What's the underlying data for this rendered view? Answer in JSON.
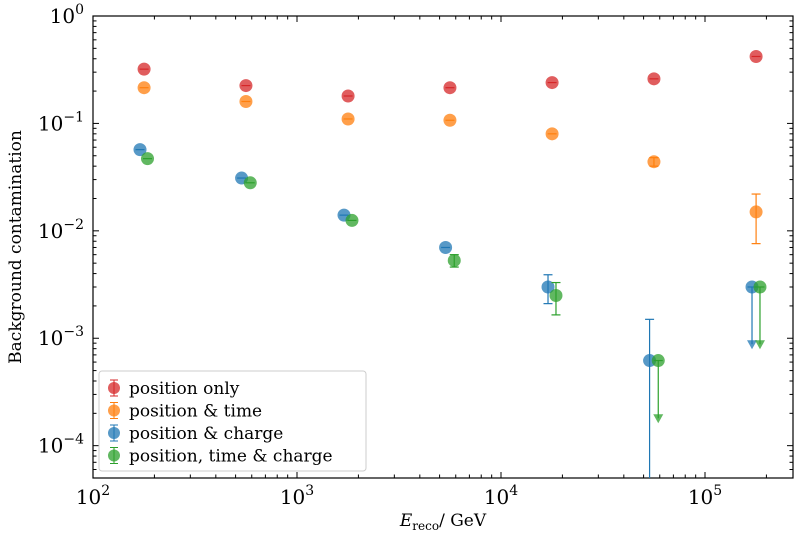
{
  "chart_data": {
    "type": "scatter",
    "title": "",
    "xlabel_main": "E",
    "xlabel_sub": "reco",
    "xlabel_unit": "/ GeV",
    "ylabel": "Background contamination",
    "xscale": "log",
    "yscale": "log",
    "xlim": [
      100,
      270000
    ],
    "ylim": [
      5e-05,
      1.0
    ],
    "x_ticks": [
      {
        "base": "10",
        "exp": "2",
        "value": 100
      },
      {
        "base": "10",
        "exp": "3",
        "value": 1000
      },
      {
        "base": "10",
        "exp": "4",
        "value": 10000
      },
      {
        "base": "10",
        "exp": "5",
        "value": 100000
      }
    ],
    "y_ticks": [
      {
        "base": "10",
        "exp": "0",
        "value": 1
      },
      {
        "base": "10",
        "exp": "−1",
        "value": 0.1
      },
      {
        "base": "10",
        "exp": "−2",
        "value": 0.01
      },
      {
        "base": "10",
        "exp": "−3",
        "value": 0.001
      },
      {
        "base": "10",
        "exp": "−4",
        "value": 0.0001
      }
    ],
    "legend_location": "bottom-left",
    "series": [
      {
        "name": "position only",
        "color": "#d62728",
        "points": [
          {
            "x": 178,
            "y": 0.32
          },
          {
            "x": 562,
            "y": 0.225
          },
          {
            "x": 1780,
            "y": 0.18
          },
          {
            "x": 5620,
            "y": 0.215
          },
          {
            "x": 17800,
            "y": 0.24
          },
          {
            "x": 56200,
            "y": 0.26
          },
          {
            "x": 178000,
            "y": 0.42
          }
        ]
      },
      {
        "name": "position & time",
        "color": "#ff7f0e",
        "points": [
          {
            "x": 178,
            "y": 0.215
          },
          {
            "x": 562,
            "y": 0.16
          },
          {
            "x": 1780,
            "y": 0.11
          },
          {
            "x": 5620,
            "y": 0.107
          },
          {
            "x": 17800,
            "y": 0.08
          },
          {
            "x": 56200,
            "y": 0.044,
            "err_low": 0.04,
            "err_high": 0.048
          },
          {
            "x": 178000,
            "y": 0.015,
            "err_low": 0.0076,
            "err_high": 0.022
          }
        ]
      },
      {
        "name": "position & charge",
        "color": "#1f77b4",
        "points": [
          {
            "x": 170,
            "y": 0.057
          },
          {
            "x": 535,
            "y": 0.031
          },
          {
            "x": 1700,
            "y": 0.014
          },
          {
            "x": 5350,
            "y": 0.007
          },
          {
            "x": 17000,
            "y": 0.003,
            "err_low": 0.0021,
            "err_high": 0.0039
          },
          {
            "x": 53500,
            "y": 0.00062,
            "err_low": 5e-05,
            "err_high": 0.0015
          },
          {
            "x": 170000,
            "y": 0.003,
            "upper_limit_to": 0.00088
          }
        ]
      },
      {
        "name": "position, time & charge",
        "color": "#2ca02c",
        "points": [
          {
            "x": 185,
            "y": 0.047
          },
          {
            "x": 590,
            "y": 0.028
          },
          {
            "x": 1860,
            "y": 0.0125
          },
          {
            "x": 5900,
            "y": 0.0053,
            "err_low": 0.0046,
            "err_high": 0.006
          },
          {
            "x": 18600,
            "y": 0.0025,
            "err_low": 0.00165,
            "err_high": 0.0033
          },
          {
            "x": 59000,
            "y": 0.00062,
            "upper_limit_to": 0.00018
          },
          {
            "x": 186000,
            "y": 0.003,
            "upper_limit_to": 0.00088
          }
        ]
      }
    ]
  }
}
